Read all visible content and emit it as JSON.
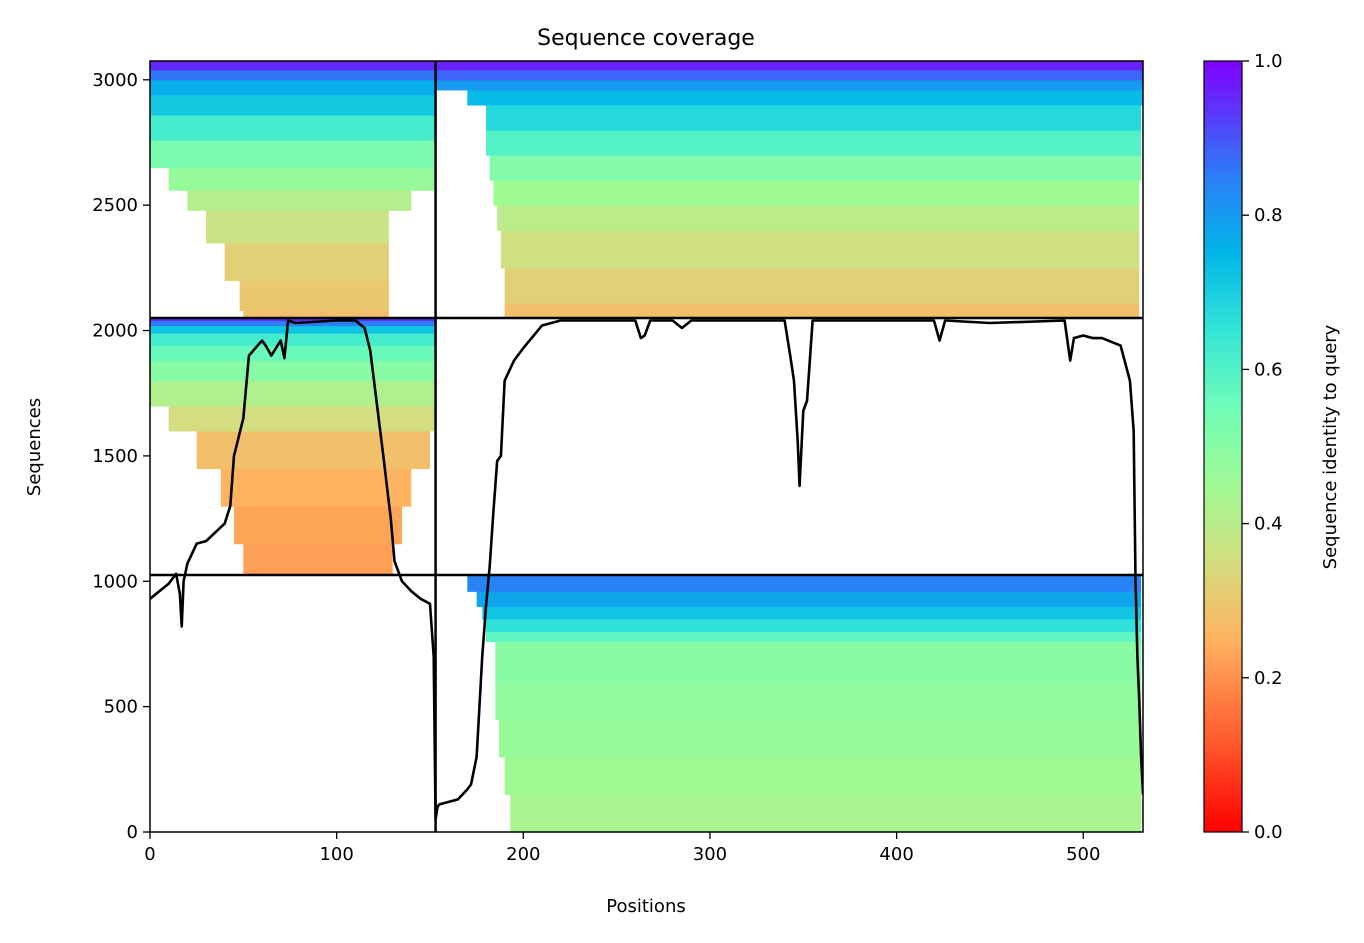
{
  "chart_data": {
    "type": "heatmap",
    "title": "Sequence coverage",
    "xlabel": "Positions",
    "ylabel": "Sequences",
    "xlim": [
      0,
      532
    ],
    "ylim": [
      0,
      3075
    ],
    "xticks": [
      0,
      100,
      200,
      300,
      400,
      500
    ],
    "yticks": [
      0,
      500,
      1000,
      1500,
      2000,
      2500,
      3000
    ],
    "grid": false,
    "colorbar": {
      "label": "Sequence identity to query",
      "range": [
        0,
        1
      ],
      "ticks": [
        0.0,
        0.2,
        0.4,
        0.6,
        0.8,
        1.0
      ],
      "tick_labels": [
        "0.0",
        "0.2",
        "0.4",
        "0.6",
        "0.8",
        "1.0"
      ],
      "colormap": "rainbow_r"
    },
    "block_boundaries": {
      "x": [
        153
      ],
      "y": [
        1025,
        2050
      ]
    },
    "blocks": [
      {
        "x_range": [
          0,
          153
        ],
        "y_range": [
          2050,
          3075
        ],
        "rows": [
          {
            "y": [
              2050,
              2080
            ],
            "x": [
              50,
              128
            ],
            "identity": 0.28
          },
          {
            "y": [
              2080,
              2200
            ],
            "x": [
              48,
              128
            ],
            "identity": 0.3
          },
          {
            "y": [
              2200,
              2350
            ],
            "x": [
              40,
              128
            ],
            "identity": 0.32
          },
          {
            "y": [
              2350,
              2480
            ],
            "x": [
              30,
              128
            ],
            "identity": 0.37
          },
          {
            "y": [
              2480,
              2560
            ],
            "x": [
              20,
              140
            ],
            "identity": 0.41
          },
          {
            "y": [
              2560,
              2650
            ],
            "x": [
              10,
              153
            ],
            "identity": 0.47
          },
          {
            "y": [
              2650,
              2760
            ],
            "x": [
              0,
              153
            ],
            "identity": 0.53
          },
          {
            "y": [
              2760,
              2860
            ],
            "x": [
              0,
              153
            ],
            "identity": 0.62
          },
          {
            "y": [
              2860,
              2940
            ],
            "x": [
              0,
              153
            ],
            "identity": 0.71
          },
          {
            "y": [
              2940,
              3000
            ],
            "x": [
              0,
              153
            ],
            "identity": 0.76
          },
          {
            "y": [
              3000,
              3040
            ],
            "x": [
              0,
              153
            ],
            "identity": 0.86
          },
          {
            "y": [
              3040,
              3075
            ],
            "x": [
              0,
              153
            ],
            "identity": 0.95
          }
        ]
      },
      {
        "x_range": [
          153,
          532
        ],
        "y_range": [
          2050,
          3075
        ],
        "rows": [
          {
            "y": [
              2050,
              2110
            ],
            "x": [
              190,
              530
            ],
            "identity": 0.28
          },
          {
            "y": [
              2110,
              2250
            ],
            "x": [
              190,
              530
            ],
            "identity": 0.32
          },
          {
            "y": [
              2250,
              2400
            ],
            "x": [
              188,
              530
            ],
            "identity": 0.36
          },
          {
            "y": [
              2400,
              2500
            ],
            "x": [
              186,
              530
            ],
            "identity": 0.4
          },
          {
            "y": [
              2500,
              2600
            ],
            "x": [
              184,
              530
            ],
            "identity": 0.45
          },
          {
            "y": [
              2600,
              2700
            ],
            "x": [
              182,
              531
            ],
            "identity": 0.51
          },
          {
            "y": [
              2700,
              2800
            ],
            "x": [
              180,
              531
            ],
            "identity": 0.6
          },
          {
            "y": [
              2800,
              2900
            ],
            "x": [
              180,
              531
            ],
            "identity": 0.68
          },
          {
            "y": [
              2900,
              2960
            ],
            "x": [
              170,
              532
            ],
            "identity": 0.74
          },
          {
            "y": [
              2960,
              3000
            ],
            "x": [
              153,
              532
            ],
            "identity": 0.8
          },
          {
            "y": [
              3000,
              3040
            ],
            "x": [
              153,
              532
            ],
            "identity": 0.88
          },
          {
            "y": [
              3040,
              3075
            ],
            "x": [
              153,
              532
            ],
            "identity": 0.96
          }
        ]
      },
      {
        "x_range": [
          0,
          153
        ],
        "y_range": [
          1025,
          2050
        ],
        "rows": [
          {
            "y": [
              1025,
              1150
            ],
            "x": [
              50,
              130
            ],
            "identity": 0.22
          },
          {
            "y": [
              1150,
              1300
            ],
            "x": [
              45,
              135
            ],
            "identity": 0.23
          },
          {
            "y": [
              1300,
              1450
            ],
            "x": [
              38,
              140
            ],
            "identity": 0.25
          },
          {
            "y": [
              1450,
              1600
            ],
            "x": [
              25,
              150
            ],
            "identity": 0.28
          },
          {
            "y": [
              1600,
              1700
            ],
            "x": [
              10,
              153
            ],
            "identity": 0.35
          },
          {
            "y": [
              1700,
              1800
            ],
            "x": [
              0,
              153
            ],
            "identity": 0.42
          },
          {
            "y": [
              1800,
              1880
            ],
            "x": [
              0,
              153
            ],
            "identity": 0.5
          },
          {
            "y": [
              1880,
              1940
            ],
            "x": [
              0,
              153
            ],
            "identity": 0.56
          },
          {
            "y": [
              1940,
              1990
            ],
            "x": [
              0,
              153
            ],
            "identity": 0.62
          },
          {
            "y": [
              1990,
              2020
            ],
            "x": [
              0,
              153
            ],
            "identity": 0.72
          },
          {
            "y": [
              2020,
              2040
            ],
            "x": [
              0,
              153
            ],
            "identity": 0.85
          },
          {
            "y": [
              2040,
              2050
            ],
            "x": [
              0,
              153
            ],
            "identity": 0.95
          }
        ]
      },
      {
        "x_range": [
          153,
          532
        ],
        "y_range": [
          0,
          1025
        ],
        "rows": [
          {
            "y": [
              0,
              150
            ],
            "x": [
              193,
              531
            ],
            "identity": 0.43
          },
          {
            "y": [
              150,
              300
            ],
            "x": [
              190,
              531
            ],
            "identity": 0.45
          },
          {
            "y": [
              300,
              450
            ],
            "x": [
              187,
              531
            ],
            "identity": 0.47
          },
          {
            "y": [
              450,
              600
            ],
            "x": [
              185,
              531
            ],
            "identity": 0.48
          },
          {
            "y": [
              600,
              760
            ],
            "x": [
              185,
              531
            ],
            "identity": 0.5
          },
          {
            "y": [
              760,
              800
            ],
            "x": [
              180,
              531
            ],
            "identity": 0.58
          },
          {
            "y": [
              800,
              850
            ],
            "x": [
              180,
              531
            ],
            "identity": 0.66
          },
          {
            "y": [
              850,
              900
            ],
            "x": [
              178,
              531
            ],
            "identity": 0.72
          },
          {
            "y": [
              900,
              960
            ],
            "x": [
              175,
              531
            ],
            "identity": 0.78
          },
          {
            "y": [
              960,
              1025
            ],
            "x": [
              170,
              531
            ],
            "identity": 0.84
          }
        ]
      }
    ],
    "coverage_line": {
      "x": [
        0,
        5,
        10,
        14,
        16,
        17,
        18,
        20,
        25,
        30,
        40,
        43,
        45,
        47,
        50,
        53,
        60,
        62,
        65,
        70,
        72,
        74,
        78,
        100,
        110,
        115,
        118,
        120,
        125,
        129,
        131,
        135,
        140,
        145,
        150,
        152,
        153,
        154,
        155,
        160,
        165,
        170,
        172,
        175,
        178,
        180,
        182,
        184,
        186,
        188,
        190,
        195,
        200,
        210,
        220,
        260,
        263,
        265,
        268,
        280,
        285,
        290,
        340,
        343,
        345,
        347,
        348,
        350,
        352,
        355,
        400,
        420,
        423,
        426,
        450,
        490,
        493,
        495,
        500,
        505,
        510,
        520,
        525,
        527,
        528,
        529,
        530,
        531,
        532
      ],
      "y": [
        930,
        960,
        990,
        1030,
        950,
        820,
        1000,
        1070,
        1150,
        1160,
        1230,
        1300,
        1500,
        1560,
        1650,
        1900,
        1960,
        1940,
        1900,
        1960,
        1890,
        2040,
        2030,
        2040,
        2040,
        2010,
        1920,
        1800,
        1500,
        1250,
        1080,
        1000,
        960,
        930,
        910,
        700,
        50,
        100,
        110,
        120,
        130,
        170,
        190,
        300,
        700,
        900,
        1060,
        1280,
        1480,
        1500,
        1800,
        1880,
        1930,
        2020,
        2040,
        2040,
        1970,
        1980,
        2040,
        2040,
        2010,
        2040,
        2040,
        1900,
        1800,
        1560,
        1380,
        1680,
        1720,
        2040,
        2040,
        2040,
        1960,
        2040,
        2030,
        2040,
        1880,
        1970,
        1980,
        1970,
        1970,
        1940,
        1800,
        1600,
        1000,
        700,
        520,
        300,
        150
      ]
    }
  }
}
